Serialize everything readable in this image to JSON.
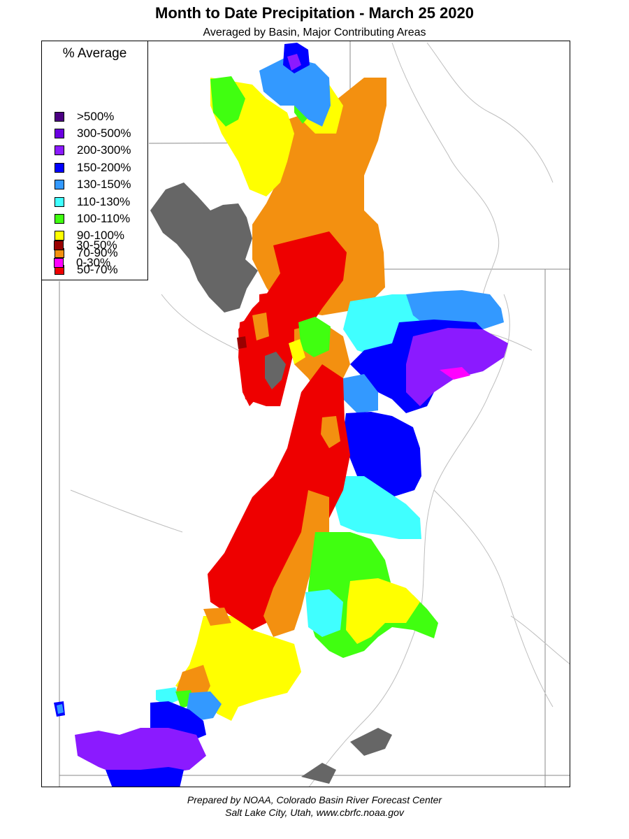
{
  "title": "Month to Date Precipitation - March 25 2020",
  "subtitle": "Averaged by Basin, Major Contributing Areas",
  "legend": {
    "title": "% Average",
    "items": [
      {
        "label": ">500%",
        "color": "#4b0082"
      },
      {
        "label": "300-500%",
        "color": "#6a00e0"
      },
      {
        "label": "200-300%",
        "color": "#8b1aff"
      },
      {
        "label": "150-200%",
        "color": "#0000ff"
      },
      {
        "label": "130-150%",
        "color": "#3399ff"
      },
      {
        "label": "110-130%",
        "color": "#40ffff"
      },
      {
        "label": "100-110%",
        "color": "#40ff10"
      },
      {
        "label": "90-100%",
        "color": "#ffff00"
      },
      {
        "label": "70-90%",
        "color": "#f39010"
      },
      {
        "label": "50-70%",
        "color": "#ee0000"
      },
      {
        "label": "30-50%",
        "color": "#990000"
      },
      {
        "label": "0-30%",
        "color": "#ff00ff"
      }
    ]
  },
  "footer": {
    "line1": "Prepared by NOAA, Colorado Basin River Forecast Center",
    "line2": "Salt Lake City, Utah, www.cbrfc.noaa.gov"
  },
  "colors": {
    "water_bodies": "#666666",
    "boundaries": "#999999",
    "rivers": "#bbbbbb"
  }
}
